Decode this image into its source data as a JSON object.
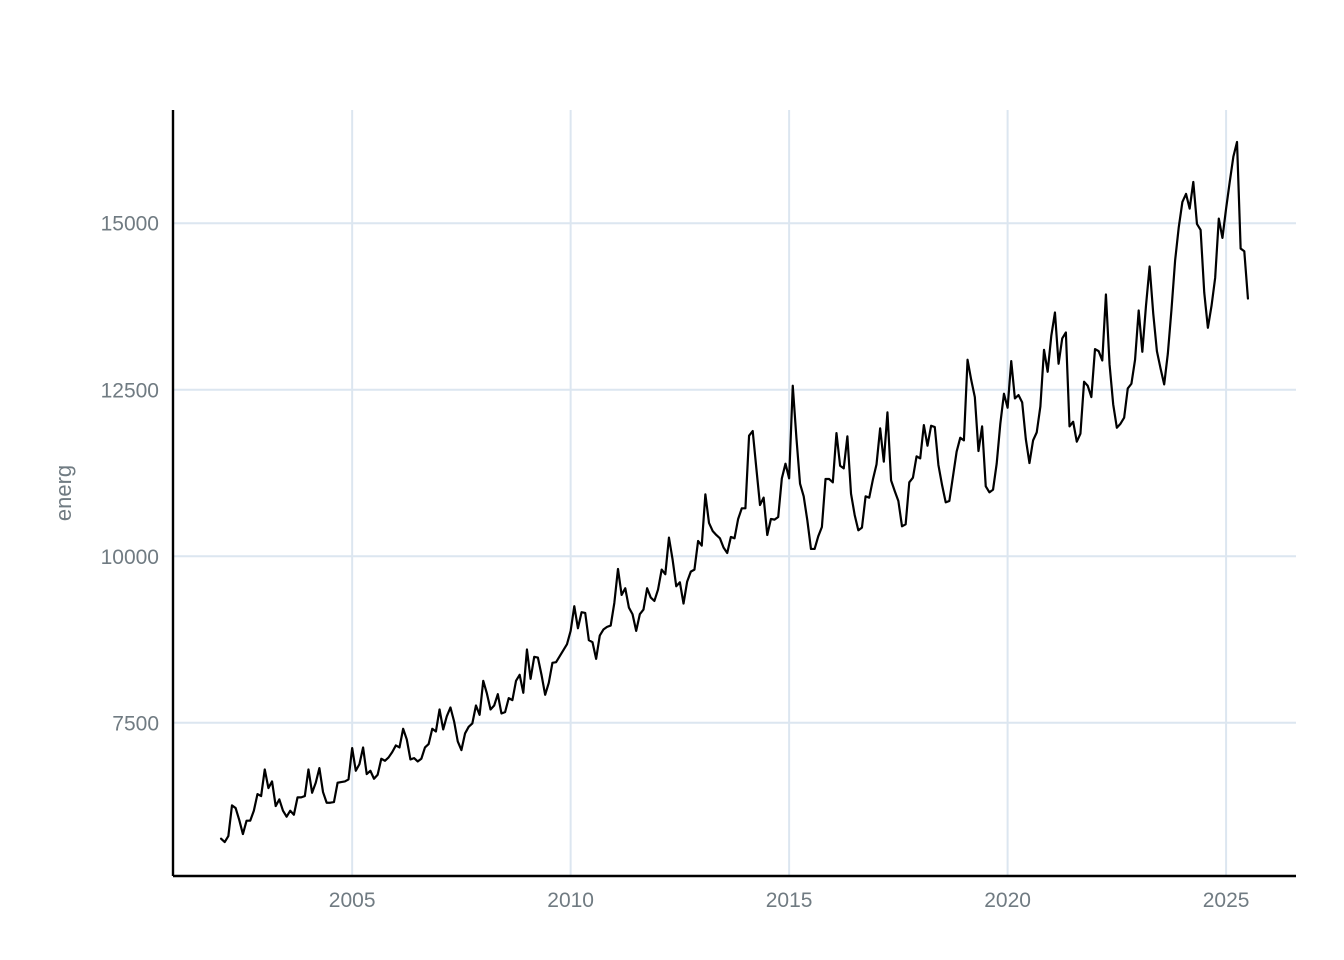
{
  "chart_data": {
    "type": "line",
    "title": "",
    "xlabel": "",
    "ylabel": "energ",
    "grid": true,
    "legend": "none",
    "xlim": [
      2000.9,
      2026.6
    ],
    "ylim": [
      5200,
      16700
    ],
    "x_ticks": [
      2005,
      2010,
      2015,
      2020,
      2025
    ],
    "x_tick_labels": [
      "2005",
      "2010",
      "2015",
      "2020",
      "2025"
    ],
    "y_ticks": [
      7500,
      10000,
      12500,
      15000
    ],
    "y_tick_labels": [
      "7500",
      "10000",
      "12500",
      "15000"
    ],
    "line_color": "#000000",
    "grid_color": "#dce6f0",
    "label_color": "#707b82",
    "series": [
      {
        "start_year": 2002,
        "start_month": 1,
        "frequency": "monthly",
        "values": [
          5760,
          5710,
          5800,
          6260,
          6220,
          6040,
          5830,
          6030,
          6030,
          6180,
          6430,
          6400,
          6800,
          6520,
          6620,
          6250,
          6350,
          6180,
          6090,
          6180,
          6120,
          6380,
          6380,
          6400,
          6800,
          6450,
          6600,
          6820,
          6460,
          6300,
          6300,
          6310,
          6600,
          6610,
          6620,
          6650,
          7120,
          6780,
          6880,
          7130,
          6730,
          6780,
          6660,
          6720,
          6960,
          6930,
          6980,
          7060,
          7160,
          7130,
          7410,
          7250,
          6950,
          6970,
          6920,
          6960,
          7130,
          7180,
          7410,
          7370,
          7700,
          7400,
          7600,
          7730,
          7520,
          7220,
          7090,
          7340,
          7440,
          7490,
          7760,
          7620,
          8130,
          7940,
          7700,
          7760,
          7930,
          7640,
          7660,
          7870,
          7840,
          8130,
          8220,
          7950,
          8600,
          8160,
          8490,
          8480,
          8220,
          7920,
          8100,
          8400,
          8410,
          8500,
          8590,
          8680,
          8880,
          9250,
          8920,
          9160,
          9150,
          8740,
          8710,
          8460,
          8810,
          8900,
          8940,
          8960,
          9300,
          9810,
          9420,
          9520,
          9230,
          9130,
          8880,
          9130,
          9200,
          9520,
          9380,
          9330,
          9500,
          9800,
          9730,
          10280,
          9950,
          9550,
          9610,
          9290,
          9620,
          9770,
          9800,
          10230,
          10160,
          10930,
          10500,
          10380,
          10320,
          10270,
          10130,
          10050,
          10290,
          10270,
          10560,
          10720,
          10720,
          11810,
          11880,
          11320,
          10770,
          10880,
          10320,
          10560,
          10550,
          10590,
          11170,
          11390,
          11170,
          12560,
          11780,
          11090,
          10900,
          10540,
          10110,
          10110,
          10300,
          10440,
          11160,
          11160,
          11110,
          11850,
          11360,
          11320,
          11800,
          10940,
          10620,
          10390,
          10430,
          10900,
          10880,
          11150,
          11380,
          11920,
          11420,
          12160,
          11140,
          10980,
          10830,
          10450,
          10480,
          11110,
          11180,
          11500,
          11470,
          11970,
          11660,
          11960,
          11940,
          11370,
          11070,
          10810,
          10830,
          11200,
          11570,
          11780,
          11740,
          12950,
          12650,
          12390,
          11580,
          11950,
          11050,
          10960,
          11000,
          11390,
          11990,
          12440,
          12230,
          12930,
          12370,
          12420,
          12310,
          11760,
          11400,
          11740,
          11860,
          12250,
          13100,
          12770,
          13310,
          13660,
          12890,
          13270,
          13360,
          11950,
          12020,
          11720,
          11840,
          12620,
          12560,
          12390,
          13110,
          13080,
          12940,
          13930,
          12880,
          12280,
          11930,
          11990,
          12080,
          12520,
          12590,
          12950,
          13690,
          13070,
          13760,
          14350,
          13640,
          13080,
          12820,
          12580,
          13040,
          13700,
          14440,
          14940,
          15320,
          15440,
          15220,
          15620,
          14990,
          14900,
          13960,
          13430,
          13760,
          14180,
          15070,
          14780,
          15220,
          15620,
          16000,
          16220,
          14620,
          14580,
          13870
        ]
      }
    ]
  }
}
